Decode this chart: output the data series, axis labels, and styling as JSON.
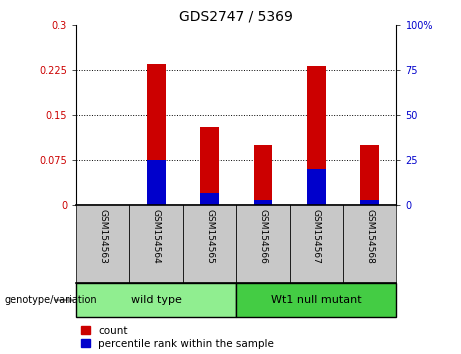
{
  "title": "GDS2747 / 5369",
  "samples": [
    "GSM154563",
    "GSM154564",
    "GSM154565",
    "GSM154566",
    "GSM154567",
    "GSM154568"
  ],
  "count_values": [
    0.0,
    0.235,
    0.13,
    0.1,
    0.232,
    0.1
  ],
  "percentile_values": [
    0,
    25,
    7,
    3,
    20,
    3
  ],
  "left_ylim": [
    0,
    0.3
  ],
  "right_ylim": [
    0,
    100
  ],
  "left_yticks": [
    0,
    0.075,
    0.15,
    0.225,
    0.3
  ],
  "right_yticks": [
    0,
    25,
    50,
    75,
    100
  ],
  "left_yticklabels": [
    "0",
    "0.075",
    "0.15",
    "0.225",
    "0.3"
  ],
  "right_yticklabels": [
    "0",
    "25",
    "50",
    "75",
    "100%"
  ],
  "dotted_lines": [
    0.075,
    0.15,
    0.225
  ],
  "bar_width": 0.35,
  "count_color": "#cc0000",
  "percentile_color": "#0000cc",
  "groups": [
    {
      "label": "wild type",
      "span": [
        0,
        2
      ],
      "color": "#90ee90"
    },
    {
      "label": "Wt1 null mutant",
      "span": [
        3,
        5
      ],
      "color": "#44cc44"
    }
  ],
  "group_label": "genotype/variation",
  "legend_count_label": "count",
  "legend_percentile_label": "percentile rank within the sample",
  "label_row_color": "#c8c8c8",
  "tick_color_left": "#cc0000",
  "tick_color_right": "#0000cc",
  "title_fontsize": 10,
  "tick_fontsize": 7,
  "sample_fontsize": 6.5,
  "group_fontsize": 8,
  "legend_fontsize": 7.5
}
